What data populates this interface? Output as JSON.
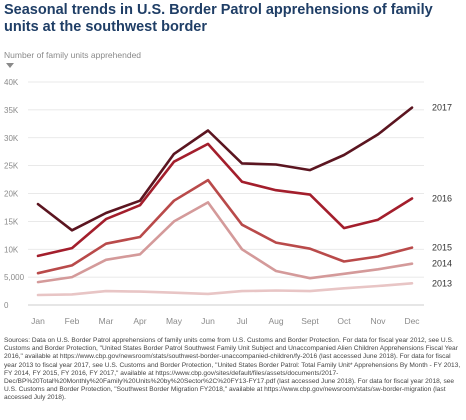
{
  "title": "Seasonal trends in U.S. Border Patrol apprehensions of family units at the southwest border",
  "chart_data": {
    "type": "line",
    "ylabel": "Number of family units apprehended",
    "xlabel": "",
    "ylim": [
      0,
      40000
    ],
    "yticks": [
      0,
      5000,
      10000,
      15000,
      20000,
      25000,
      30000,
      35000,
      40000
    ],
    "ytick_labels": [
      "0",
      "5,000",
      "10K",
      "15K",
      "20K",
      "25K",
      "30K",
      "35K",
      "40K"
    ],
    "categories": [
      "Jan",
      "Feb",
      "Mar",
      "Apr",
      "May",
      "Jun",
      "Jul",
      "Aug",
      "Sept",
      "Oct",
      "Nov",
      "Dec"
    ],
    "grid": true,
    "series": [
      {
        "name": "2013",
        "color": "#e8c5c5",
        "values": [
          1800,
          1900,
          2500,
          2400,
          2200,
          2000,
          2500,
          2600,
          2500,
          3000,
          3400,
          3900
        ]
      },
      {
        "name": "2014",
        "color": "#d49a9a",
        "values": [
          4100,
          5000,
          8100,
          9100,
          15000,
          18400,
          10000,
          6100,
          4800,
          5600,
          6400,
          7400
        ]
      },
      {
        "name": "2015",
        "color": "#b94a4a",
        "values": [
          5700,
          7100,
          11000,
          12200,
          18700,
          22400,
          14400,
          11200,
          10100,
          7800,
          8700,
          10300
        ]
      },
      {
        "name": "2016",
        "color": "#a31e2c",
        "values": [
          8800,
          10200,
          15400,
          17900,
          25700,
          28900,
          22100,
          20600,
          19800,
          13800,
          15300,
          19100
        ]
      },
      {
        "name": "2017",
        "color": "#5b1520",
        "values": [
          18100,
          13400,
          16500,
          18700,
          27100,
          31300,
          25400,
          25200,
          24200,
          26900,
          30600,
          35400
        ]
      }
    ]
  },
  "sources": "Sources: Data on U.S. Border Patrol apprehensions of family units come from U.S. Customs and Border Protection. For data for fiscal year 2012, see U.S. Customs and Border Protection, \"United States Border Patrol Southwest Family Unit Subject and Unaccompanied Alien Children Apprehensions Fiscal Year 2016,\" available at https://www.cbp.gov/newsroom/stats/southwest-border-unaccompanied-children/fy-2016 (last accessed June 2018). For data for fiscal year 2013 to fiscal year 2017, see U.S. Customs and Border Protection, \"United States Border Patrol: Total Family Unit* Apprehensions By Month - FY 2013, FY 2014, FY 2015, FY 2016, FY 2017,\" available at https://www.cbp.gov/sites/default/files/assets/documents/2017-Dec/BP%20Total%20Monthly%20Family%20Units%20by%20Sector%2C%20FY13-FY17.pdf (last accessed June 2018). For data for fiscal year 2018, see U.S. Customs and Border Protection, \"Southwest Border Migration FY2018,\" available at https://www.cbp.gov/newsroom/stats/sw-border-migration (last accessed July 2018)."
}
